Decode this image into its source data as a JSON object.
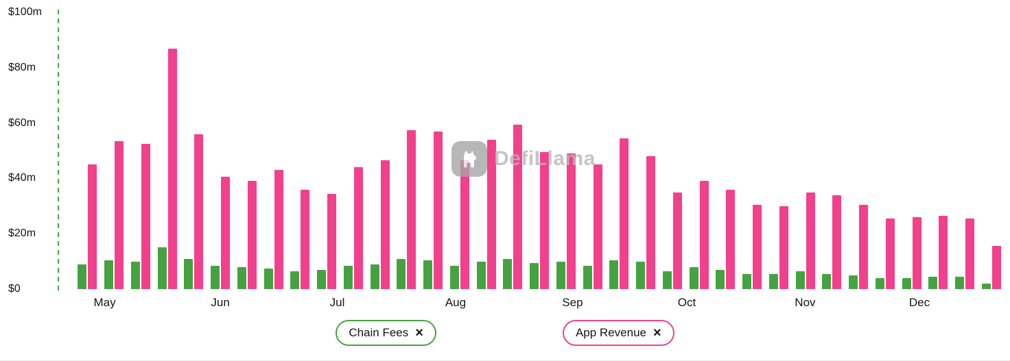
{
  "watermark": {
    "text": "DefiLlama",
    "logo": "llama-badge"
  },
  "legend": [
    {
      "label": "Chain Fees",
      "close": "×",
      "color": "#44a340"
    },
    {
      "label": "App Revenue",
      "close": "×",
      "color": "#f2408c"
    }
  ],
  "colors": {
    "chain_fees": "#44a340",
    "app_revenue": "#f2408c",
    "axis_line": "#3fab44",
    "text": "#141414"
  },
  "chart_data": {
    "type": "bar",
    "title": "",
    "xlabel": "",
    "ylabel": "",
    "unit": "million USD",
    "ylim": [
      0,
      100
    ],
    "grid": false,
    "legend_position": "bottom",
    "y_ticks": [
      {
        "label": "$100m",
        "value": 100
      },
      {
        "label": "$80m",
        "value": 80
      },
      {
        "label": "$60m",
        "value": 60
      },
      {
        "label": "$40m",
        "value": 40
      },
      {
        "label": "$20m",
        "value": 20
      },
      {
        "label": "$0",
        "value": 0
      }
    ],
    "x_months": [
      {
        "label": "May",
        "pair_index": 0.65
      },
      {
        "label": "Jun",
        "pair_index": 5.0
      },
      {
        "label": "Jul",
        "pair_index": 9.4
      },
      {
        "label": "Aug",
        "pair_index": 13.85
      },
      {
        "label": "Sep",
        "pair_index": 18.25
      },
      {
        "label": "Oct",
        "pair_index": 22.55
      },
      {
        "label": "Nov",
        "pair_index": 27.0
      },
      {
        "label": "Dec",
        "pair_index": 31.3
      }
    ],
    "series": [
      {
        "name": "Chain Fees",
        "color": "#44a340",
        "values": [
          9,
          10.5,
          10,
          15,
          11,
          8.5,
          8,
          7.5,
          6.5,
          7,
          8.5,
          9,
          11,
          10.5,
          8.5,
          10,
          11,
          9.5,
          10,
          8.5,
          10.5,
          10,
          6.5,
          8,
          7,
          5.5,
          5.5,
          6.5,
          5.5,
          5,
          4,
          4,
          4.5,
          4.5,
          2
        ]
      },
      {
        "name": "App Revenue",
        "color": "#f2408c",
        "values": [
          45,
          53.5,
          52.5,
          87,
          56,
          40.5,
          39,
          43,
          36,
          34.5,
          44,
          46.5,
          57.5,
          57,
          46.5,
          54,
          59.5,
          49.5,
          49,
          45,
          54.5,
          48,
          35,
          39,
          36,
          30.5,
          30,
          35,
          34,
          30.5,
          25.5,
          26,
          26.5,
          25.5,
          15.5
        ]
      }
    ]
  }
}
